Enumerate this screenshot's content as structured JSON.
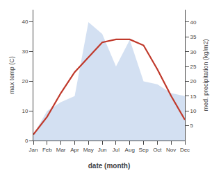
{
  "chart_data": {
    "type": "line",
    "xlabel": "date (month)",
    "ylabel": "max temp (C)",
    "y2label": "med. precipitation (kg/m2)",
    "categories": [
      "Jan",
      "Feb",
      "Mar",
      "Apr",
      "May",
      "Jun",
      "Jul",
      "Aug",
      "Sep",
      "Oct",
      "Nov",
      "Dec"
    ],
    "series": [
      {
        "type": "line",
        "color": "#c0392b",
        "values": [
          2,
          8,
          16,
          23,
          28,
          33,
          34,
          34,
          32,
          24,
          15,
          7
        ]
      },
      {
        "type": "area",
        "color": "#aec6e8",
        "axis": "y2",
        "values": [
          2,
          10,
          13,
          15,
          40,
          36,
          25,
          34,
          20,
          19,
          16,
          15
        ]
      }
    ],
    "ylim": [
      0,
      44
    ],
    "yticks": [
      0,
      10,
      20,
      30,
      40
    ],
    "y2lim": [
      0,
      44.2
    ],
    "y2ticks": [
      5,
      10,
      15,
      20,
      25,
      30,
      35,
      40
    ],
    "grid": false
  }
}
